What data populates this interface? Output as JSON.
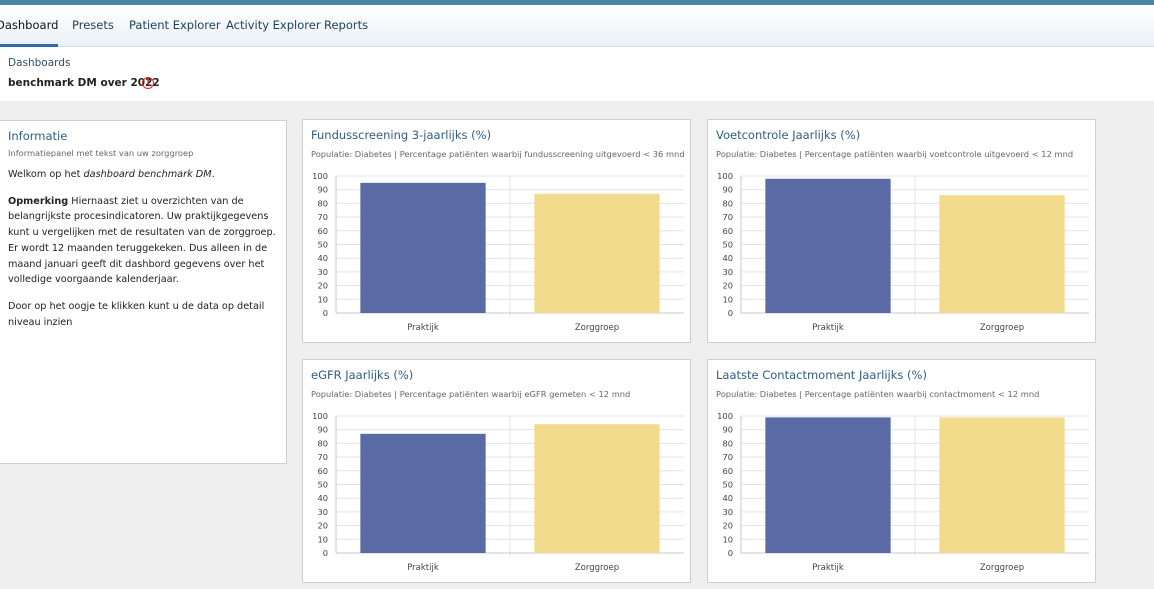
{
  "nav": {
    "tabs": [
      {
        "label": "Dashboard",
        "active": true
      },
      {
        "label": "Presets",
        "active": false
      },
      {
        "label": "Patient Explorer",
        "active": false
      },
      {
        "label": "Activity Explorer",
        "active": false
      },
      {
        "label": "Reports",
        "active": false
      }
    ]
  },
  "header": {
    "breadcrumb": "Dashboards",
    "title": "benchmark DM over 2022",
    "warning_icon": "!"
  },
  "info": {
    "title": "Informatie",
    "subtitle": "Informatiepanel met tekst van uw zorggroep",
    "welcome_prefix": "Welkom op het ",
    "welcome_em": "dashboard benchmark DM",
    "welcome_suffix": ".",
    "remark_label": "Opmerking",
    "remark_text": " Hiernaast ziet u overzichten van de belangrijkste procesindicatoren. Uw praktijkgegevens kunt u vergelijken met de resultaten van de zorggroep. Er wordt 12 maanden teruggekeken. Dus alleen in de maand januari geeft dit dashbord gegevens over het volledige voorgaande kalenderjaar.",
    "detail_text": "Door op het oogje te klikken kunt u de data op detail niveau inzien"
  },
  "colors": {
    "praktijk": "#5a6aa5",
    "zorggroep": "#f3db8d",
    "accent": "#2f5d84",
    "topbar": "#4a86a8"
  },
  "cards": [
    {
      "title": "Fundusscreening 3-jaarlijks (%)",
      "subtitle": "Populatie: Diabetes | Percentage patiënten waarbij fundusscreening uitgevoerd < 36 mnd"
    },
    {
      "title": "Voetcontrole Jaarlijks (%)",
      "subtitle": "Populatie: Diabetes | Percentage patiënten waarbij voetcontrole uitgevoerd < 12 mnd"
    },
    {
      "title": "eGFR Jaarlijks (%)",
      "subtitle": "Populatie: Diabetes | Percentage patiënten waarbij eGFR gemeten < 12 mnd"
    },
    {
      "title": "Laatste Contactmoment Jaarlijks (%)",
      "subtitle": "Populatie: Diabetes | Percentage patiënten waarbij contactmoment < 12 mnd"
    }
  ],
  "chart_data": [
    {
      "type": "bar",
      "title": "Fundusscreening 3-jaarlijks (%)",
      "categories": [
        "Praktijk",
        "Zorggroep"
      ],
      "values": [
        95,
        87
      ],
      "ylim": [
        0,
        100
      ],
      "yticks": [
        0,
        10,
        20,
        30,
        40,
        50,
        60,
        70,
        80,
        90,
        100
      ],
      "grid": true,
      "legend": "none"
    },
    {
      "type": "bar",
      "title": "Voetcontrole Jaarlijks (%)",
      "categories": [
        "Praktijk",
        "Zorggroep"
      ],
      "values": [
        98,
        86
      ],
      "ylim": [
        0,
        100
      ],
      "yticks": [
        0,
        10,
        20,
        30,
        40,
        50,
        60,
        70,
        80,
        90,
        100
      ],
      "grid": true,
      "legend": "none"
    },
    {
      "type": "bar",
      "title": "eGFR Jaarlijks (%)",
      "categories": [
        "Praktijk",
        "Zorggroep"
      ],
      "values": [
        87,
        94
      ],
      "ylim": [
        0,
        100
      ],
      "yticks": [
        0,
        10,
        20,
        30,
        40,
        50,
        60,
        70,
        80,
        90,
        100
      ],
      "grid": true,
      "legend": "none"
    },
    {
      "type": "bar",
      "title": "Laatste Contactmoment Jaarlijks (%)",
      "categories": [
        "Praktijk",
        "Zorggroep"
      ],
      "values": [
        99,
        99
      ],
      "ylim": [
        0,
        100
      ],
      "yticks": [
        0,
        10,
        20,
        30,
        40,
        50,
        60,
        70,
        80,
        90,
        100
      ],
      "grid": true,
      "legend": "none"
    }
  ]
}
